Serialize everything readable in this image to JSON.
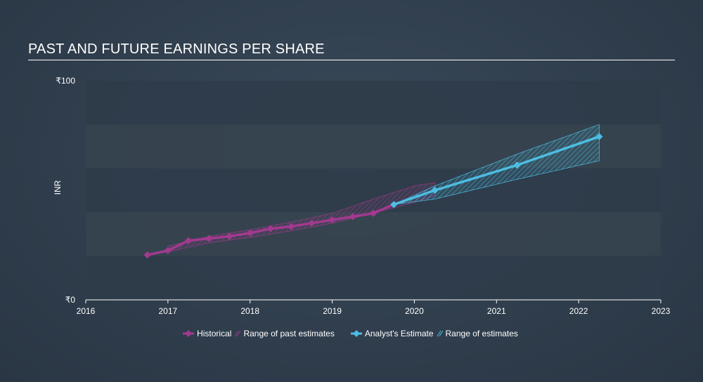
{
  "title": "PAST AND FUTURE EARNINGS PER SHARE",
  "legend": {
    "historical": "Historical",
    "past_range": "Range of past estimates",
    "analyst": "Analyst's Estimate",
    "future_range": "Range of estimates"
  },
  "colors": {
    "historical": "#a3398f",
    "analyst": "#4dbde2",
    "band_dark": "#2f3c4a",
    "band_light": "#36444f"
  },
  "chart_data": {
    "type": "line",
    "title": "PAST AND FUTURE EARNINGS PER SHARE",
    "xlabel": "",
    "ylabel": "INR",
    "xlim": [
      2016,
      2023
    ],
    "ylim": [
      0,
      100
    ],
    "x_ticks": [
      "2016",
      "2017",
      "2018",
      "2019",
      "2020",
      "2021",
      "2022",
      "2023"
    ],
    "y_ticks": [
      "₹0",
      "₹100"
    ],
    "series": [
      {
        "name": "Historical",
        "x": [
          2016.75,
          2017.0,
          2017.25,
          2017.5,
          2017.75,
          2018.0,
          2018.25,
          2018.5,
          2018.75,
          2019.0,
          2019.25,
          2019.5,
          2019.75
        ],
        "y": [
          20.5,
          22.5,
          27.0,
          28.0,
          29.0,
          30.5,
          32.5,
          33.5,
          35.0,
          36.5,
          38.0,
          39.5,
          43.5
        ]
      },
      {
        "name": "Range of past estimates",
        "x": [
          2017.0,
          2017.5,
          2018.0,
          2018.5,
          2019.0,
          2019.5,
          2020.0,
          2020.25
        ],
        "low": [
          22.0,
          26.0,
          28.5,
          31.5,
          35.0,
          39.5,
          44.5,
          47.5
        ],
        "high": [
          24.5,
          29.0,
          32.0,
          35.5,
          39.5,
          46.0,
          52.0,
          53.5
        ]
      },
      {
        "name": "Analyst's Estimate",
        "x": [
          2019.75,
          2020.25,
          2021.25,
          2022.25
        ],
        "y": [
          43.5,
          50.0,
          61.5,
          74.5
        ]
      },
      {
        "name": "Range of estimates",
        "x": [
          2019.75,
          2020.25,
          2021.25,
          2022.25
        ],
        "low": [
          43.5,
          46.0,
          55.0,
          63.5
        ],
        "high": [
          43.5,
          52.0,
          66.5,
          80.0
        ]
      }
    ]
  }
}
